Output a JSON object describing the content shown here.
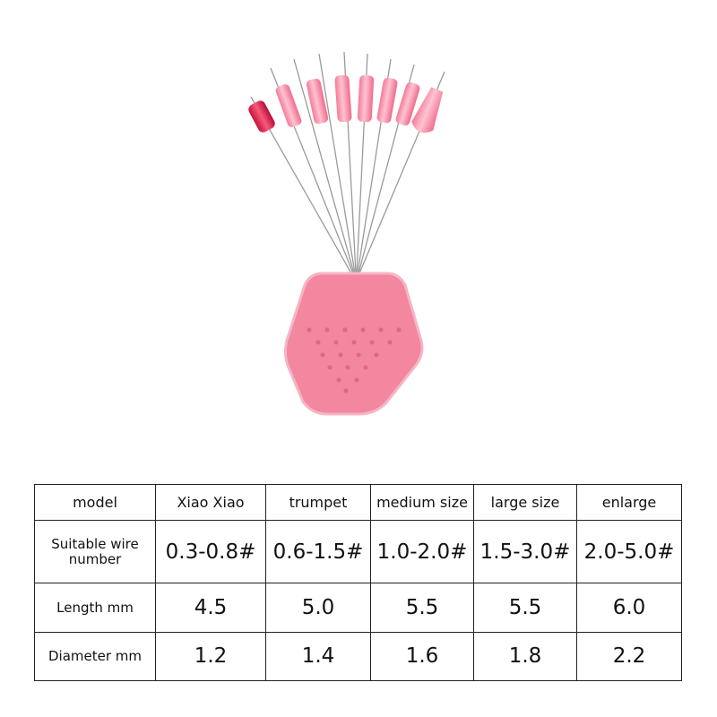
{
  "table": {
    "header": [
      "model",
      "Xiao Xiao",
      "trumpet",
      "medium size",
      "large size",
      "enlarge"
    ],
    "rows": [
      [
        "Suitable wire number",
        "0.3-0.8#",
        "0.6-1.5#",
        "1.0-2.0#",
        "1.5-3.0#",
        "2.0-5.0#"
      ],
      [
        "Length mm",
        "4.5",
        "5.0",
        "5.5",
        "5.5",
        "6.0"
      ],
      [
        "Diameter mm",
        "1.2",
        "1.4",
        "1.6",
        "1.8",
        "2.2"
      ]
    ]
  }
}
